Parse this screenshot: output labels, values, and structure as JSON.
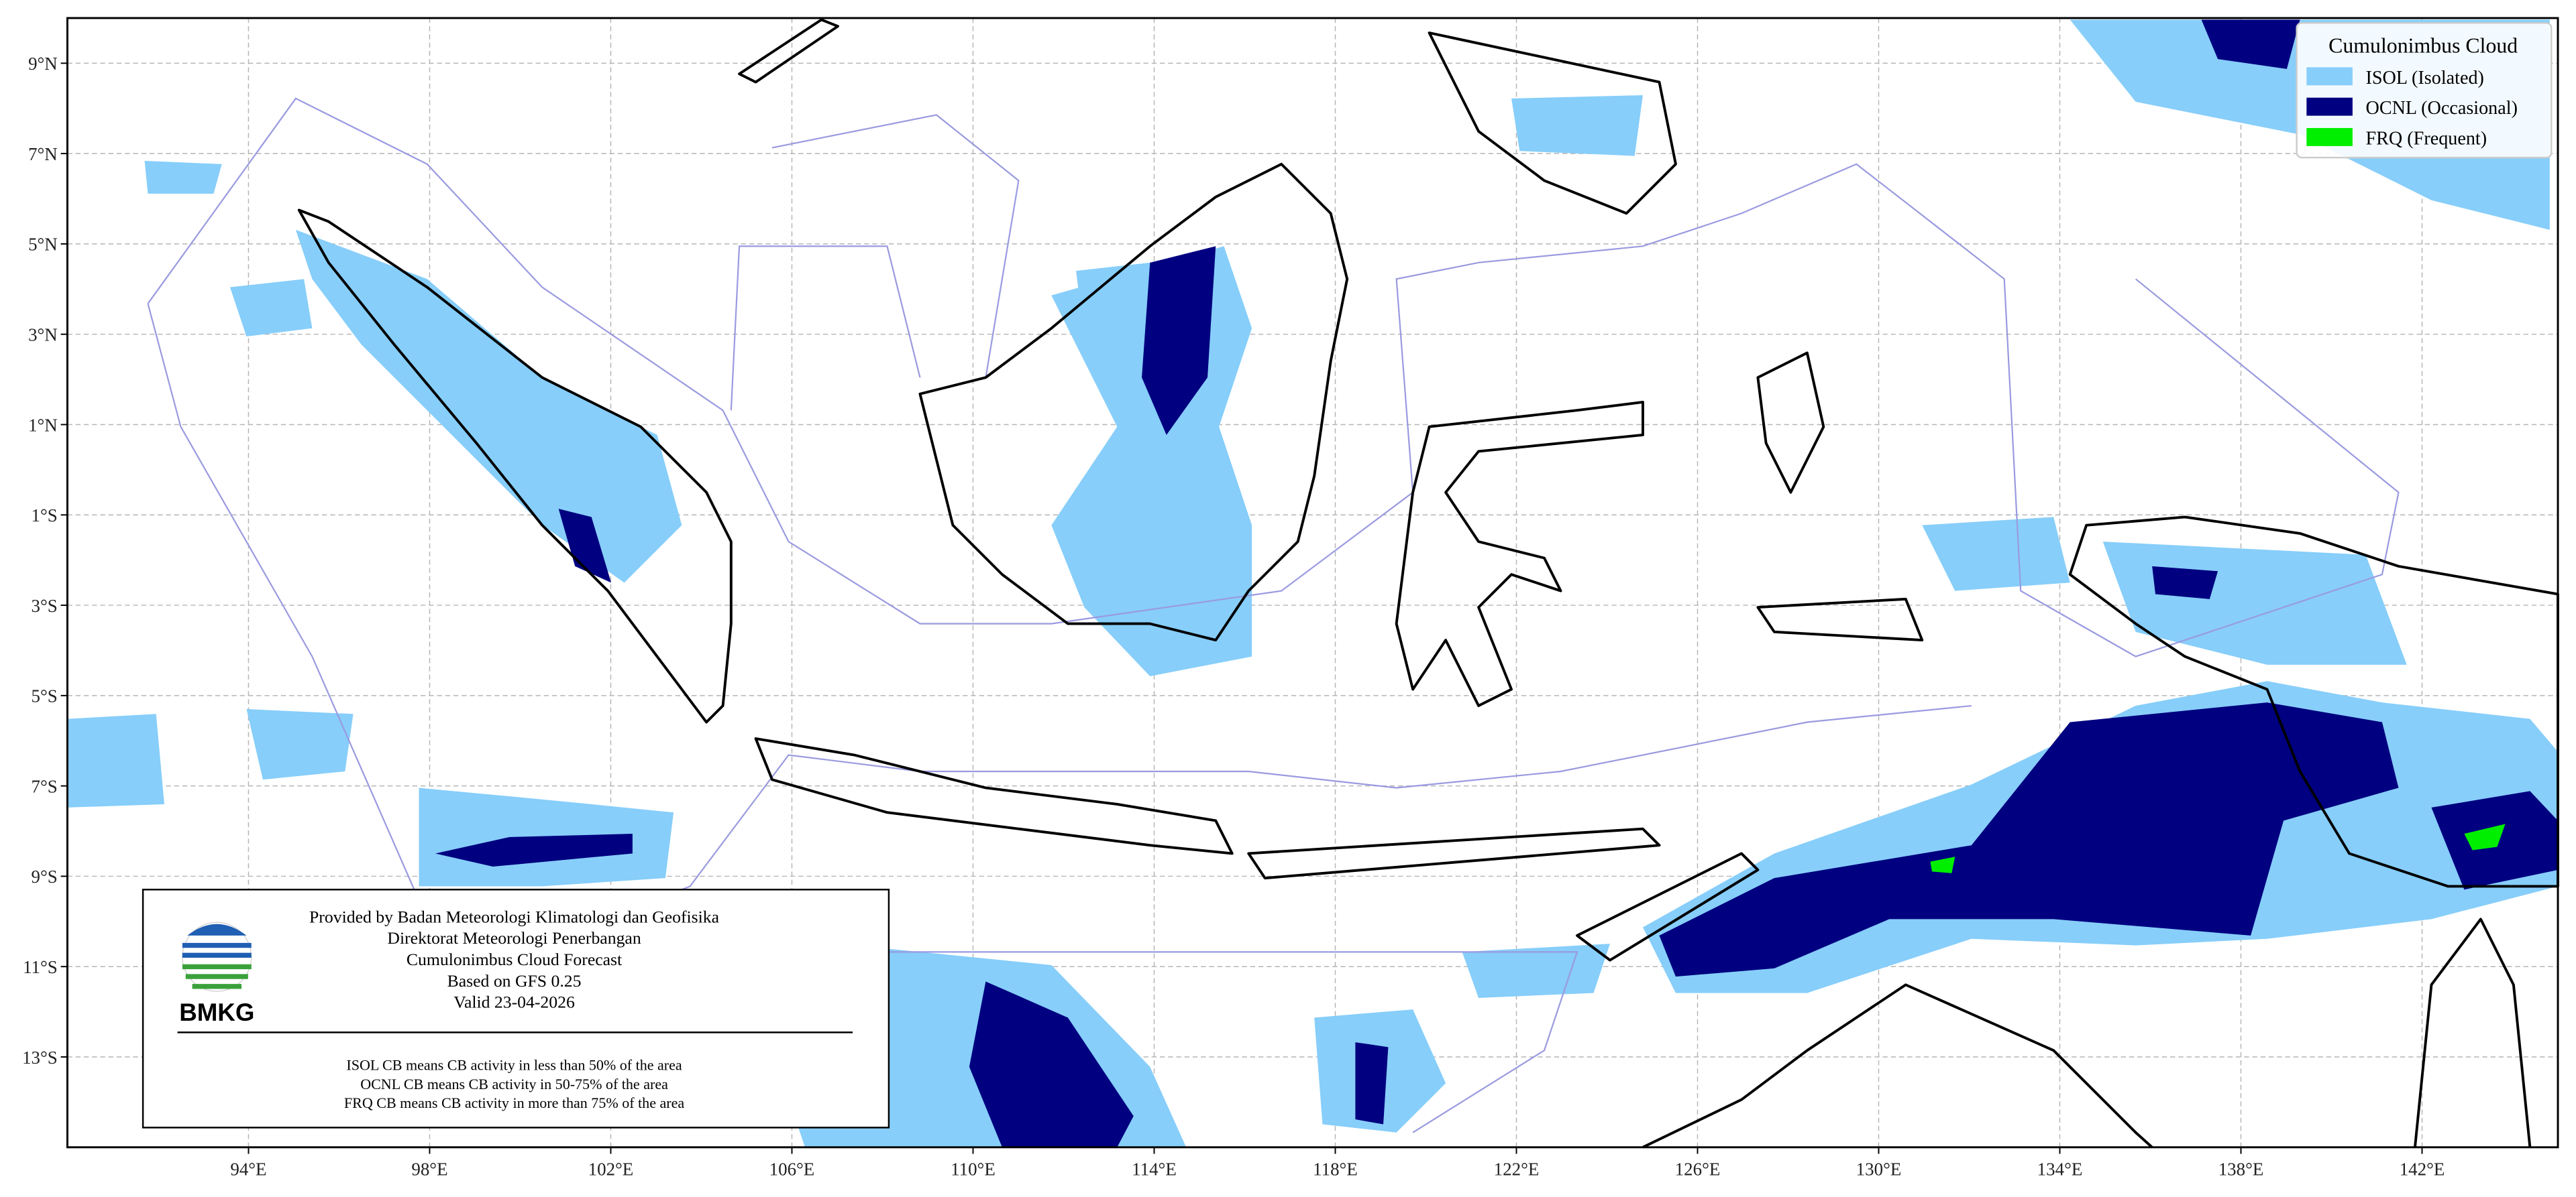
{
  "map": {
    "lonlim": [
      90,
      145
    ],
    "latlim": [
      -15,
      10
    ],
    "lon_ticks": [
      {
        "value": 94,
        "label": "94°E"
      },
      {
        "value": 98,
        "label": "98°E"
      },
      {
        "value": 102,
        "label": "102°E"
      },
      {
        "value": 106,
        "label": "106°E"
      },
      {
        "value": 110,
        "label": "110°E"
      },
      {
        "value": 114,
        "label": "114°E"
      },
      {
        "value": 118,
        "label": "118°E"
      },
      {
        "value": 122,
        "label": "122°E"
      },
      {
        "value": 126,
        "label": "126°E"
      },
      {
        "value": 130,
        "label": "130°E"
      },
      {
        "value": 134,
        "label": "134°E"
      },
      {
        "value": 138,
        "label": "138°E"
      },
      {
        "value": 142,
        "label": "142°E"
      }
    ],
    "lat_ticks": [
      {
        "value": 9,
        "label": "9°N"
      },
      {
        "value": 7,
        "label": "7°N"
      },
      {
        "value": 5,
        "label": "5°N"
      },
      {
        "value": 3,
        "label": "3°N"
      },
      {
        "value": 1,
        "label": "1°N"
      },
      {
        "value": -1,
        "label": "1°S"
      },
      {
        "value": -3,
        "label": "3°S"
      },
      {
        "value": -5,
        "label": "5°S"
      },
      {
        "value": -7,
        "label": "7°S"
      },
      {
        "value": -9,
        "label": "9°S"
      },
      {
        "value": -11,
        "label": "11°S"
      },
      {
        "value": -13,
        "label": "13°S"
      }
    ]
  },
  "legend": {
    "title": "Cumulonimbus Cloud",
    "items": [
      {
        "label": "ISOL (Isolated)",
        "color": "#87cefa"
      },
      {
        "label": "OCNL (Occasional)",
        "color": "#000080"
      },
      {
        "label": "FRQ (Frequent)",
        "color": "#00ee00"
      }
    ]
  },
  "info": {
    "logo": "BMKG",
    "lines": [
      "Provided by Badan Meteorologi Klimatologi dan Geofisika",
      "Direktorat Meteorologi Penerbangan",
      "Cumulonimbus Cloud Forecast",
      "Based on GFS 0.25",
      "Valid 23-04-2026"
    ],
    "notes": [
      "ISOL CB means CB activity in less than 50% of the area",
      "OCNL CB means CB activity in 50-75% of the area",
      "FRQ CB means CB activity in more than 75% of the area"
    ]
  }
}
